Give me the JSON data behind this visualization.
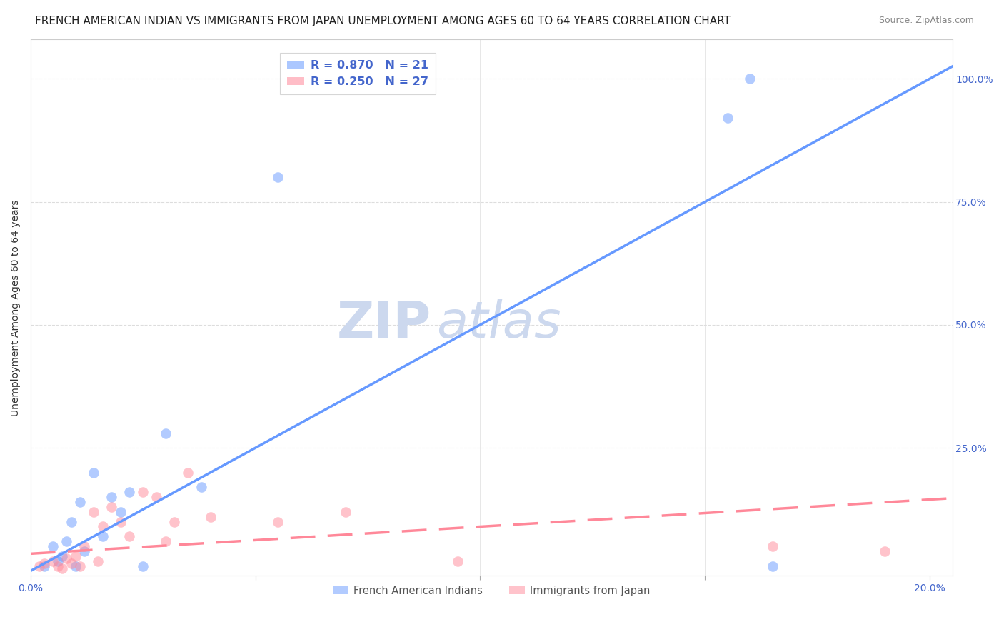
{
  "title": "FRENCH AMERICAN INDIAN VS IMMIGRANTS FROM JAPAN UNEMPLOYMENT AMONG AGES 60 TO 64 YEARS CORRELATION CHART",
  "source": "Source: ZipAtlas.com",
  "ylabel": "Unemployment Among Ages 60 to 64 years",
  "x_tick_positions": [
    0.0,
    0.05,
    0.1,
    0.15,
    0.2
  ],
  "x_tick_labels": [
    "0.0%",
    "",
    "",
    "",
    "20.0%"
  ],
  "y_ticks_right": [
    0.0,
    0.25,
    0.5,
    0.75,
    1.0
  ],
  "y_tick_labels_right": [
    "",
    "25.0%",
    "50.0%",
    "75.0%",
    "100.0%"
  ],
  "xlim": [
    0.0,
    0.205
  ],
  "ylim": [
    -0.01,
    1.08
  ],
  "blue_scatter_x": [
    0.003,
    0.005,
    0.006,
    0.007,
    0.008,
    0.009,
    0.01,
    0.011,
    0.012,
    0.014,
    0.016,
    0.018,
    0.02,
    0.022,
    0.025,
    0.03,
    0.038,
    0.155,
    0.16,
    0.165,
    0.055
  ],
  "blue_scatter_y": [
    0.01,
    0.05,
    0.02,
    0.03,
    0.06,
    0.1,
    0.01,
    0.14,
    0.04,
    0.2,
    0.07,
    0.15,
    0.12,
    0.16,
    0.01,
    0.28,
    0.17,
    0.92,
    1.0,
    0.01,
    0.8
  ],
  "pink_scatter_x": [
    0.002,
    0.003,
    0.005,
    0.006,
    0.007,
    0.008,
    0.009,
    0.01,
    0.011,
    0.012,
    0.014,
    0.015,
    0.016,
    0.018,
    0.02,
    0.022,
    0.025,
    0.028,
    0.03,
    0.032,
    0.035,
    0.04,
    0.055,
    0.07,
    0.095,
    0.165,
    0.19
  ],
  "pink_scatter_y": [
    0.01,
    0.015,
    0.02,
    0.01,
    0.005,
    0.025,
    0.015,
    0.03,
    0.01,
    0.05,
    0.12,
    0.02,
    0.09,
    0.13,
    0.1,
    0.07,
    0.16,
    0.15,
    0.06,
    0.1,
    0.2,
    0.11,
    0.1,
    0.12,
    0.02,
    0.05,
    0.04
  ],
  "blue_line_color": "#6699ff",
  "pink_line_color": "#ff8899",
  "blue_R": "0.870",
  "blue_N": "21",
  "pink_R": "0.250",
  "pink_N": "27",
  "scatter_alpha": 0.5,
  "scatter_size": 110,
  "title_fontsize": 11,
  "axis_label_fontsize": 10,
  "tick_fontsize": 10,
  "legend_label_blue": "French American Indians",
  "legend_label_pink": "Immigrants from Japan",
  "watermark_text1": "ZIP",
  "watermark_text2": "atlas",
  "watermark_color": "#ccd8ee",
  "watermark_fontsize": 52,
  "right_axis_color": "#4466cc",
  "background_color": "#ffffff",
  "grid_color": "#dddddd"
}
